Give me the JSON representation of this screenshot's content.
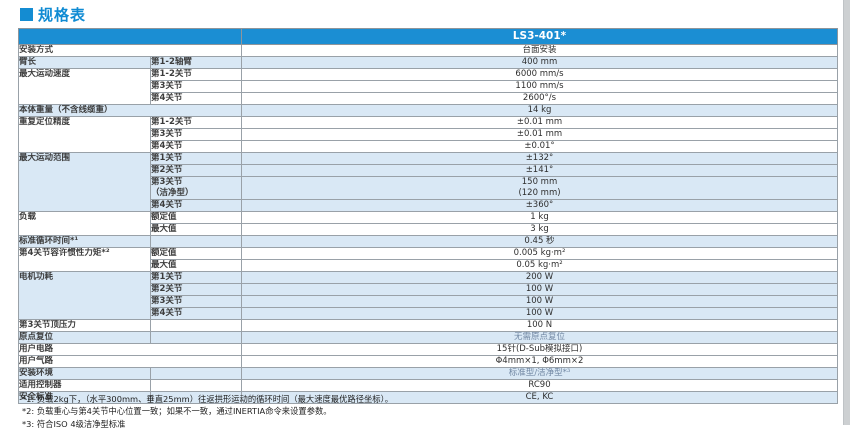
{
  "page": {
    "title": "规格表"
  },
  "colors": {
    "accent_blue": "#148cd2",
    "header_bg": "#1b8ed3",
    "row_shade": "#d9e8f5",
    "muted_text": "#7288a4",
    "border": "#99a1a8"
  },
  "table": {
    "model_header": "LS3-401*",
    "groups": [
      {
        "label": "安装方式",
        "span": true,
        "shaded": false,
        "rows": [
          {
            "value": "台面安装"
          }
        ]
      },
      {
        "label": "臂长",
        "shaded": true,
        "rows": [
          {
            "sub": "第1-2轴臂",
            "value": "400 mm"
          }
        ]
      },
      {
        "label": "最大运动速度",
        "shaded": false,
        "rows": [
          {
            "sub": "第1-2关节",
            "value": "6000 mm/s"
          },
          {
            "sub": "第3关节",
            "value": "1100 mm/s"
          },
          {
            "sub": "第4关节",
            "value": "2600°/s"
          }
        ]
      },
      {
        "label": "本体重量（不含线缆重）",
        "span": true,
        "shaded": true,
        "rows": [
          {
            "value": "14 kg"
          }
        ]
      },
      {
        "label": "重复定位精度",
        "shaded": false,
        "rows": [
          {
            "sub": "第1-2关节",
            "value": "±0.01 mm"
          },
          {
            "sub": "第3关节",
            "value": "±0.01 mm"
          },
          {
            "sub": "第4关节",
            "value": "±0.01°"
          }
        ]
      },
      {
        "label": "最大运动范围",
        "shaded": true,
        "rows": [
          {
            "sub": "第1关节",
            "value": "±132°"
          },
          {
            "sub": "第2关节",
            "value": "±141°"
          },
          {
            "sub": "第3关节\n（洁净型）",
            "value": "150 mm\n(120 mm)",
            "double": true
          },
          {
            "sub": "第4关节",
            "value": "±360°"
          }
        ]
      },
      {
        "label": "负载",
        "shaded": false,
        "rows": [
          {
            "sub": "额定值",
            "value": "1 kg"
          },
          {
            "sub": "最大值",
            "value": "3 kg"
          }
        ]
      },
      {
        "label": "标准循环时间*¹",
        "shaded": true,
        "rows": [
          {
            "sub": "",
            "value": "0.45 秒"
          }
        ]
      },
      {
        "label": "第4关节容许惯性力矩*²",
        "shaded": false,
        "rows": [
          {
            "sub": "额定值",
            "value": "0.005 kg·m²"
          },
          {
            "sub": "最大值",
            "value": "0.05 kg·m²"
          }
        ]
      },
      {
        "label": "电机功耗",
        "shaded": true,
        "rows": [
          {
            "sub": "第1关节",
            "value": "200 W"
          },
          {
            "sub": "第2关节",
            "value": "100 W"
          },
          {
            "sub": "第3关节",
            "value": "100 W"
          },
          {
            "sub": "第4关节",
            "value": "100 W"
          }
        ]
      },
      {
        "label": "第3关节顶压力",
        "shaded": false,
        "rows": [
          {
            "sub": "",
            "value": "100 N"
          }
        ]
      },
      {
        "label": "原点复位",
        "shaded": true,
        "rows": [
          {
            "sub": "",
            "value": "无需原点复位",
            "muted": true
          }
        ]
      },
      {
        "label": "用户电路",
        "span": true,
        "shaded": false,
        "rows": [
          {
            "value": "15针(D-Sub模拟接口)"
          }
        ]
      },
      {
        "label": "用户气路",
        "span": true,
        "shaded": false,
        "rows": [
          {
            "value": "Φ4mm×1, Φ6mm×2"
          }
        ]
      },
      {
        "label": "安装环境",
        "shaded": true,
        "rows": [
          {
            "sub": "",
            "value": "标准型/洁净型*³",
            "muted": true
          }
        ]
      },
      {
        "label": "适用控制器",
        "shaded": false,
        "rows": [
          {
            "sub": "",
            "value": "RC90"
          }
        ]
      },
      {
        "label": "安全标准",
        "shaded": true,
        "rows": [
          {
            "sub": "",
            "value": "CE, KC"
          }
        ]
      }
    ]
  },
  "footnotes": [
    "*1: 负载2kg下，（水平300mm、垂直25mm）往返拱形运动的循环时间（最大速度最优路径坐标）。",
    "*2: 负载重心与第4关节中心位置一致；如果不一致，通过INERTIA命令来设置参数。",
    "*3: 符合ISO 4级洁净型标准"
  ]
}
